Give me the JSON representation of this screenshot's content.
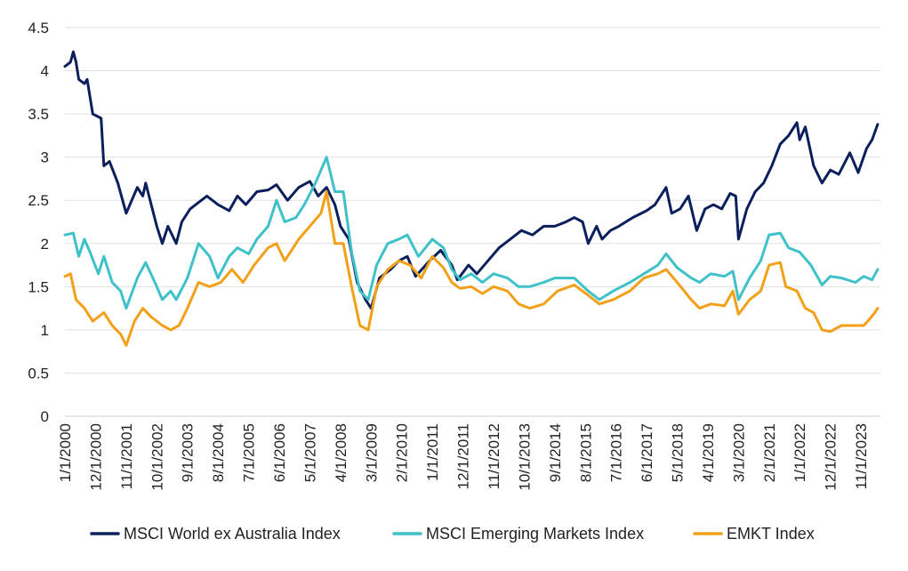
{
  "chart_data": {
    "type": "line",
    "title": "",
    "xlabel": "",
    "ylabel": "",
    "ylim": [
      0,
      4.5
    ],
    "yticks": [
      "0",
      "0.5",
      "1",
      "1.5",
      "2",
      "2.5",
      "3",
      "3.5",
      "4",
      "4.5"
    ],
    "xlim": [
      "2000-01",
      "2024-06"
    ],
    "xticks": [
      "1/1/2000",
      "12/1/2000",
      "11/1/2001",
      "10/1/2002",
      "9/1/2003",
      "8/1/2004",
      "7/1/2005",
      "6/1/2006",
      "5/1/2007",
      "4/1/2008",
      "3/1/2009",
      "2/1/2010",
      "1/1/2011",
      "12/1/2011",
      "11/1/2012",
      "10/1/2013",
      "9/1/2014",
      "8/1/2015",
      "7/1/2016",
      "6/1/2017",
      "5/1/2018",
      "4/1/2019",
      "3/1/2020",
      "2/1/2021",
      "1/1/2022",
      "12/1/2022",
      "11/1/2023"
    ],
    "grid": "horizontal",
    "legend_position": "bottom",
    "series": [
      {
        "name": "MSCI World ex Australia Index",
        "color": "#0b1f5c",
        "points": [
          [
            "2000-01",
            4.05
          ],
          [
            "2000-03",
            4.1
          ],
          [
            "2000-04",
            4.22
          ],
          [
            "2000-05",
            4.1
          ],
          [
            "2000-06",
            3.9
          ],
          [
            "2000-08",
            3.85
          ],
          [
            "2000-09",
            3.9
          ],
          [
            "2000-11",
            3.5
          ],
          [
            "2001-02",
            3.45
          ],
          [
            "2001-03",
            2.9
          ],
          [
            "2001-05",
            2.95
          ],
          [
            "2001-08",
            2.7
          ],
          [
            "2001-11",
            2.35
          ],
          [
            "2002-03",
            2.65
          ],
          [
            "2002-05",
            2.55
          ],
          [
            "2002-06",
            2.7
          ],
          [
            "2002-10",
            2.2
          ],
          [
            "2002-12",
            2.0
          ],
          [
            "2003-02",
            2.2
          ],
          [
            "2003-05",
            2.0
          ],
          [
            "2003-07",
            2.25
          ],
          [
            "2003-10",
            2.4
          ],
          [
            "2003-12",
            2.45
          ],
          [
            "2004-04",
            2.55
          ],
          [
            "2004-08",
            2.45
          ],
          [
            "2004-12",
            2.38
          ],
          [
            "2005-03",
            2.55
          ],
          [
            "2005-06",
            2.45
          ],
          [
            "2005-10",
            2.6
          ],
          [
            "2006-02",
            2.62
          ],
          [
            "2006-05",
            2.68
          ],
          [
            "2006-09",
            2.5
          ],
          [
            "2007-01",
            2.65
          ],
          [
            "2007-05",
            2.72
          ],
          [
            "2007-08",
            2.55
          ],
          [
            "2007-11",
            2.65
          ],
          [
            "2008-02",
            2.45
          ],
          [
            "2008-04",
            2.2
          ],
          [
            "2008-07",
            2.05
          ],
          [
            "2008-10",
            1.55
          ],
          [
            "2009-01",
            1.35
          ],
          [
            "2009-03",
            1.25
          ],
          [
            "2009-06",
            1.6
          ],
          [
            "2009-10",
            1.7
          ],
          [
            "2010-01",
            1.8
          ],
          [
            "2010-04",
            1.85
          ],
          [
            "2010-07",
            1.62
          ],
          [
            "2010-12",
            1.8
          ],
          [
            "2011-04",
            1.92
          ],
          [
            "2011-08",
            1.75
          ],
          [
            "2011-10",
            1.58
          ],
          [
            "2012-02",
            1.75
          ],
          [
            "2012-05",
            1.65
          ],
          [
            "2012-09",
            1.8
          ],
          [
            "2013-01",
            1.95
          ],
          [
            "2013-05",
            2.05
          ],
          [
            "2013-09",
            2.15
          ],
          [
            "2014-01",
            2.1
          ],
          [
            "2014-05",
            2.2
          ],
          [
            "2014-09",
            2.2
          ],
          [
            "2015-01",
            2.25
          ],
          [
            "2015-04",
            2.3
          ],
          [
            "2015-07",
            2.25
          ],
          [
            "2015-09",
            2.0
          ],
          [
            "2015-12",
            2.2
          ],
          [
            "2016-02",
            2.05
          ],
          [
            "2016-05",
            2.15
          ],
          [
            "2016-08",
            2.2
          ],
          [
            "2017-01",
            2.3
          ],
          [
            "2017-06",
            2.38
          ],
          [
            "2017-09",
            2.45
          ],
          [
            "2018-01",
            2.65
          ],
          [
            "2018-03",
            2.35
          ],
          [
            "2018-06",
            2.4
          ],
          [
            "2018-09",
            2.55
          ],
          [
            "2018-12",
            2.15
          ],
          [
            "2019-03",
            2.4
          ],
          [
            "2019-06",
            2.45
          ],
          [
            "2019-09",
            2.4
          ],
          [
            "2019-12",
            2.58
          ],
          [
            "2020-02",
            2.55
          ],
          [
            "2020-03",
            2.05
          ],
          [
            "2020-06",
            2.4
          ],
          [
            "2020-09",
            2.6
          ],
          [
            "2020-12",
            2.7
          ],
          [
            "2021-03",
            2.9
          ],
          [
            "2021-06",
            3.15
          ],
          [
            "2021-09",
            3.25
          ],
          [
            "2021-12",
            3.4
          ],
          [
            "2022-01",
            3.2
          ],
          [
            "2022-03",
            3.35
          ],
          [
            "2022-06",
            2.9
          ],
          [
            "2022-09",
            2.7
          ],
          [
            "2022-12",
            2.85
          ],
          [
            "2023-03",
            2.8
          ],
          [
            "2023-07",
            3.05
          ],
          [
            "2023-10",
            2.82
          ],
          [
            "2024-01",
            3.1
          ],
          [
            "2024-03",
            3.2
          ],
          [
            "2024-05",
            3.38
          ]
        ]
      },
      {
        "name": "MSCI Emerging Markets Index",
        "color": "#3fc1c9",
        "points": [
          [
            "2000-01",
            2.1
          ],
          [
            "2000-04",
            2.12
          ],
          [
            "2000-06",
            1.85
          ],
          [
            "2000-08",
            2.05
          ],
          [
            "2000-10",
            1.9
          ],
          [
            "2001-01",
            1.65
          ],
          [
            "2001-03",
            1.85
          ],
          [
            "2001-06",
            1.55
          ],
          [
            "2001-09",
            1.45
          ],
          [
            "2001-11",
            1.25
          ],
          [
            "2002-03",
            1.6
          ],
          [
            "2002-06",
            1.78
          ],
          [
            "2002-10",
            1.5
          ],
          [
            "2002-12",
            1.35
          ],
          [
            "2003-03",
            1.45
          ],
          [
            "2003-05",
            1.35
          ],
          [
            "2003-09",
            1.6
          ],
          [
            "2004-01",
            2.0
          ],
          [
            "2004-05",
            1.85
          ],
          [
            "2004-08",
            1.6
          ],
          [
            "2004-12",
            1.85
          ],
          [
            "2005-03",
            1.95
          ],
          [
            "2005-07",
            1.88
          ],
          [
            "2005-10",
            2.05
          ],
          [
            "2006-02",
            2.2
          ],
          [
            "2006-05",
            2.5
          ],
          [
            "2006-08",
            2.25
          ],
          [
            "2006-12",
            2.3
          ],
          [
            "2007-03",
            2.45
          ],
          [
            "2007-07",
            2.7
          ],
          [
            "2007-11",
            3.0
          ],
          [
            "2008-02",
            2.6
          ],
          [
            "2008-05",
            2.6
          ],
          [
            "2008-08",
            1.9
          ],
          [
            "2008-11",
            1.45
          ],
          [
            "2009-02",
            1.35
          ],
          [
            "2009-05",
            1.75
          ],
          [
            "2009-09",
            2.0
          ],
          [
            "2010-01",
            2.05
          ],
          [
            "2010-04",
            2.1
          ],
          [
            "2010-08",
            1.85
          ],
          [
            "2011-01",
            2.05
          ],
          [
            "2011-05",
            1.95
          ],
          [
            "2011-08",
            1.7
          ],
          [
            "2011-11",
            1.58
          ],
          [
            "2012-03",
            1.65
          ],
          [
            "2012-07",
            1.55
          ],
          [
            "2012-11",
            1.65
          ],
          [
            "2013-04",
            1.6
          ],
          [
            "2013-08",
            1.5
          ],
          [
            "2013-12",
            1.5
          ],
          [
            "2014-05",
            1.55
          ],
          [
            "2014-09",
            1.6
          ],
          [
            "2015-04",
            1.6
          ],
          [
            "2015-09",
            1.45
          ],
          [
            "2016-01",
            1.35
          ],
          [
            "2016-06",
            1.45
          ],
          [
            "2016-12",
            1.55
          ],
          [
            "2017-05",
            1.65
          ],
          [
            "2017-10",
            1.75
          ],
          [
            "2018-01",
            1.88
          ],
          [
            "2018-05",
            1.72
          ],
          [
            "2018-10",
            1.6
          ],
          [
            "2019-01",
            1.55
          ],
          [
            "2019-05",
            1.65
          ],
          [
            "2019-10",
            1.62
          ],
          [
            "2020-01",
            1.68
          ],
          [
            "2020-03",
            1.35
          ],
          [
            "2020-07",
            1.6
          ],
          [
            "2020-11",
            1.8
          ],
          [
            "2021-02",
            2.1
          ],
          [
            "2021-06",
            2.12
          ],
          [
            "2021-09",
            1.95
          ],
          [
            "2022-01",
            1.9
          ],
          [
            "2022-05",
            1.75
          ],
          [
            "2022-09",
            1.52
          ],
          [
            "2022-12",
            1.62
          ],
          [
            "2023-04",
            1.6
          ],
          [
            "2023-09",
            1.55
          ],
          [
            "2023-12",
            1.62
          ],
          [
            "2024-03",
            1.58
          ],
          [
            "2024-05",
            1.7
          ]
        ]
      },
      {
        "name": "EMKT Index",
        "color": "#f3a019",
        "points": [
          [
            "2000-01",
            1.62
          ],
          [
            "2000-03",
            1.65
          ],
          [
            "2000-05",
            1.35
          ],
          [
            "2000-08",
            1.25
          ],
          [
            "2000-11",
            1.1
          ],
          [
            "2001-03",
            1.2
          ],
          [
            "2001-06",
            1.05
          ],
          [
            "2001-09",
            0.95
          ],
          [
            "2001-11",
            0.82
          ],
          [
            "2002-02",
            1.1
          ],
          [
            "2002-05",
            1.25
          ],
          [
            "2002-08",
            1.15
          ],
          [
            "2002-12",
            1.05
          ],
          [
            "2003-03",
            1.0
          ],
          [
            "2003-06",
            1.05
          ],
          [
            "2003-09",
            1.25
          ],
          [
            "2004-01",
            1.55
          ],
          [
            "2004-05",
            1.5
          ],
          [
            "2004-09",
            1.55
          ],
          [
            "2005-01",
            1.7
          ],
          [
            "2005-05",
            1.55
          ],
          [
            "2005-09",
            1.75
          ],
          [
            "2006-02",
            1.95
          ],
          [
            "2006-05",
            2.0
          ],
          [
            "2006-08",
            1.8
          ],
          [
            "2007-01",
            2.05
          ],
          [
            "2007-05",
            2.2
          ],
          [
            "2007-09",
            2.35
          ],
          [
            "2007-11",
            2.6
          ],
          [
            "2008-02",
            2.0
          ],
          [
            "2008-05",
            2.0
          ],
          [
            "2008-08",
            1.5
          ],
          [
            "2008-11",
            1.05
          ],
          [
            "2009-02",
            1.0
          ],
          [
            "2009-05",
            1.5
          ],
          [
            "2009-09",
            1.7
          ],
          [
            "2010-01",
            1.8
          ],
          [
            "2010-05",
            1.75
          ],
          [
            "2010-09",
            1.6
          ],
          [
            "2011-01",
            1.85
          ],
          [
            "2011-05",
            1.72
          ],
          [
            "2011-08",
            1.55
          ],
          [
            "2011-11",
            1.48
          ],
          [
            "2012-03",
            1.5
          ],
          [
            "2012-07",
            1.42
          ],
          [
            "2012-11",
            1.5
          ],
          [
            "2013-04",
            1.45
          ],
          [
            "2013-08",
            1.3
          ],
          [
            "2013-12",
            1.25
          ],
          [
            "2014-05",
            1.3
          ],
          [
            "2014-10",
            1.45
          ],
          [
            "2015-04",
            1.52
          ],
          [
            "2015-09",
            1.4
          ],
          [
            "2016-01",
            1.3
          ],
          [
            "2016-06",
            1.35
          ],
          [
            "2016-12",
            1.45
          ],
          [
            "2017-05",
            1.6
          ],
          [
            "2017-10",
            1.65
          ],
          [
            "2018-01",
            1.7
          ],
          [
            "2018-05",
            1.55
          ],
          [
            "2018-10",
            1.35
          ],
          [
            "2019-01",
            1.25
          ],
          [
            "2019-05",
            1.3
          ],
          [
            "2019-10",
            1.28
          ],
          [
            "2020-01",
            1.45
          ],
          [
            "2020-03",
            1.18
          ],
          [
            "2020-07",
            1.35
          ],
          [
            "2020-11",
            1.45
          ],
          [
            "2021-02",
            1.75
          ],
          [
            "2021-06",
            1.78
          ],
          [
            "2021-08",
            1.5
          ],
          [
            "2021-12",
            1.45
          ],
          [
            "2022-03",
            1.25
          ],
          [
            "2022-06",
            1.2
          ],
          [
            "2022-09",
            1.0
          ],
          [
            "2022-12",
            0.98
          ],
          [
            "2023-04",
            1.05
          ],
          [
            "2023-08",
            1.05
          ],
          [
            "2023-12",
            1.05
          ],
          [
            "2024-02",
            1.12
          ],
          [
            "2024-04",
            1.2
          ],
          [
            "2024-05",
            1.25
          ]
        ]
      }
    ]
  }
}
